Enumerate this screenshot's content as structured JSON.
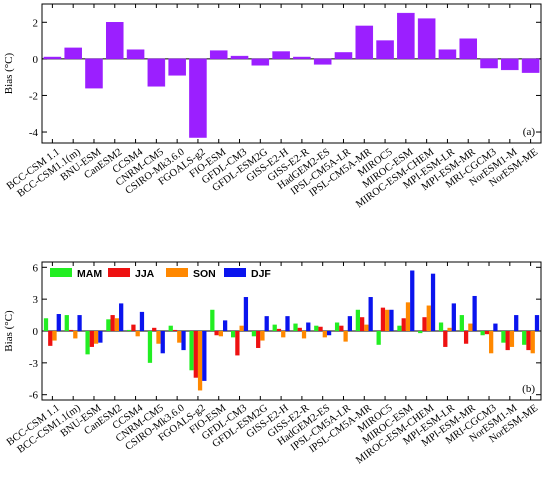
{
  "chart_data": [
    {
      "type": "bar",
      "ylabel": "Bias (°C)",
      "panel_label": "(a)",
      "ylim": [
        -4.6,
        3.0
      ],
      "yticks": [
        -4,
        -2,
        0,
        2
      ],
      "grid": false,
      "color": "#9b1fff",
      "categories": [
        "BCC-CSM 1.1",
        "BCC-CSM1.1(m)",
        "BNU-ESM",
        "CanESM2",
        "CCSM4",
        "CNRM-CM5",
        "CSIRO-Mk3.6.0",
        "FGOALS-g2",
        "FIO-ESM",
        "GFDL-CM3",
        "GFDL-ESM2G",
        "GISS-E2-H",
        "GISS-E2-R",
        "HadGEM2-ES",
        "IPSL-CM5A-LR",
        "IPSL-CM5A-MR",
        "MIROC5",
        "MIROC-ESM",
        "MIROC-ESM-CHEM",
        "MPI-ESM-LR",
        "MPI-ESM-MR",
        "MRI-CGCM3",
        "NorESM1-M",
        "NorESM-ME"
      ],
      "values": [
        0.1,
        0.6,
        -1.6,
        2.0,
        0.5,
        -1.5,
        -0.9,
        -4.3,
        0.45,
        0.15,
        -0.35,
        0.4,
        0.1,
        -0.3,
        0.35,
        1.8,
        1.0,
        2.5,
        2.2,
        0.5,
        1.1,
        -0.5,
        -0.6,
        -0.75
      ]
    },
    {
      "type": "bar",
      "ylabel": "Bias (°C)",
      "panel_label": "(b)",
      "ylim": [
        -6.5,
        6.5
      ],
      "yticks": [
        -6,
        -3,
        0,
        3,
        6
      ],
      "grid": false,
      "legend": "top-left",
      "categories": [
        "BCC-CSM 1.1",
        "BCC-CSM1.1(m)",
        "BNU-ESM",
        "CanESM2",
        "CCSM4",
        "CNRM-CM5",
        "CSIRO-Mk3.6.0",
        "FGOALS-g2",
        "FIO-ESM",
        "GFDL-CM3",
        "GFDL-ESM2G",
        "GISS-E2-H",
        "GISS-E2-R",
        "HadGEM2-ES",
        "IPSL-CM5A-LR",
        "IPSL-CM5A-MR",
        "MIROC5",
        "MIROC-ESM",
        "MIROC-ESM-CHEM",
        "MPI-ESM-LR",
        "MPI-ESM-MR",
        "MRI-CGCM3",
        "NorESM1-M",
        "NorESM-ME"
      ],
      "series": [
        {
          "name": "MAM",
          "color": "#22ee22",
          "values": [
            1.2,
            1.5,
            -2.2,
            1.1,
            0.1,
            -3.0,
            0.5,
            -3.7,
            2.0,
            -0.6,
            -0.5,
            0.6,
            0.7,
            0.5,
            0.8,
            2.0,
            -1.3,
            0.5,
            -0.2,
            0.8,
            1.5,
            -0.4,
            -1.1,
            -1.3
          ]
        },
        {
          "name": "JJA",
          "color": "#ee1111",
          "values": [
            -1.4,
            0.1,
            -1.5,
            1.5,
            0.6,
            0.3,
            0.1,
            -4.4,
            -0.4,
            -2.3,
            -1.6,
            0.2,
            0.3,
            0.4,
            0.5,
            1.3,
            2.2,
            1.2,
            1.3,
            -1.5,
            -1.2,
            -0.3,
            -1.8,
            -1.8
          ]
        },
        {
          "name": "SON",
          "color": "#ff8800",
          "values": [
            -0.9,
            -0.7,
            -1.2,
            1.2,
            -0.5,
            -1.2,
            -1.1,
            -5.6,
            -0.5,
            0.5,
            -0.9,
            -0.6,
            -0.7,
            -0.6,
            -1.0,
            0.6,
            2.0,
            2.7,
            2.4,
            0.3,
            0.7,
            -2.1,
            -1.5,
            -2.1
          ]
        },
        {
          "name": "DJF",
          "color": "#0a14ee",
          "values": [
            1.6,
            1.5,
            -1.1,
            2.6,
            1.8,
            -2.1,
            -1.8,
            -4.7,
            1.0,
            3.2,
            1.4,
            1.4,
            0.8,
            -0.4,
            1.4,
            3.2,
            2.0,
            5.7,
            5.4,
            2.6,
            3.3,
            0.7,
            1.5,
            1.5
          ]
        }
      ]
    }
  ]
}
